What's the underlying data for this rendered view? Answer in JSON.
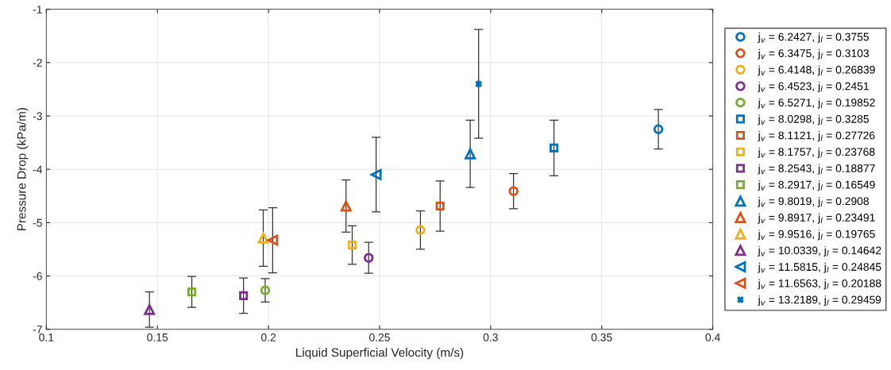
{
  "chart_data": {
    "type": "scatter",
    "xlabel": "Liquid Superficial Velocity (m/s)",
    "ylabel": "Pressure Drop (kPa/m)",
    "xlim": [
      0.1,
      0.4
    ],
    "ylim": [
      -7,
      -1
    ],
    "xticks": [
      0.1,
      0.15,
      0.2,
      0.25,
      0.3,
      0.35,
      0.4
    ],
    "yticks": [
      -7,
      -6,
      -5,
      -4,
      -3,
      -2,
      -1
    ],
    "grid": true,
    "legend": "right",
    "series": [
      {
        "name": "j$_{v}$ = 6.2427, j$_{l}$ = 0.3755",
        "color": "#0072bd",
        "marker": "circle",
        "x": [
          0.3755
        ],
        "values": [
          -3.25
        ],
        "errors": [
          0.37
        ]
      },
      {
        "name": "j$_{v}$ = 6.3475, j$_{l}$ = 0.3103",
        "color": "#d95319",
        "marker": "circle",
        "x": [
          0.3103
        ],
        "values": [
          -4.41
        ],
        "errors": [
          0.33
        ]
      },
      {
        "name": "j$_{v}$ = 6.4148, j$_{l}$ = 0.26839",
        "color": "#edb120",
        "marker": "circle",
        "x": [
          0.26839
        ],
        "values": [
          -5.14
        ],
        "errors": [
          0.36
        ]
      },
      {
        "name": "j$_{v}$ = 6.4523, j$_{l}$ = 0.2451",
        "color": "#7e2f8e",
        "marker": "circle",
        "x": [
          0.2451
        ],
        "values": [
          -5.66
        ],
        "errors": [
          0.29
        ]
      },
      {
        "name": "j$_{v}$ = 6.5271, j$_{l}$ = 0.19852",
        "color": "#77ac30",
        "marker": "circle",
        "x": [
          0.19852
        ],
        "values": [
          -6.27
        ],
        "errors": [
          0.22
        ]
      },
      {
        "name": "j$_{v}$ = 8.0298, j$_{l}$ = 0.3285",
        "color": "#0072bd",
        "marker": "square",
        "x": [
          0.3285
        ],
        "values": [
          -3.6
        ],
        "errors": [
          0.52
        ]
      },
      {
        "name": "j$_{v}$ = 8.1121, j$_{l}$ = 0.27726",
        "color": "#d95319",
        "marker": "square",
        "x": [
          0.27726
        ],
        "values": [
          -4.69
        ],
        "errors": [
          0.47
        ]
      },
      {
        "name": "j$_{v}$ = 8.1757, j$_{l}$ = 0.23768",
        "color": "#edb120",
        "marker": "square",
        "x": [
          0.23768
        ],
        "values": [
          -5.42
        ],
        "errors": [
          0.36
        ]
      },
      {
        "name": "j$_{v}$ = 8.2543, j$_{l}$ = 0.18877",
        "color": "#7e2f8e",
        "marker": "square",
        "x": [
          0.18877
        ],
        "values": [
          -6.37
        ],
        "errors": [
          0.33
        ]
      },
      {
        "name": "j$_{v}$ = 8.2917, j$_{l}$ = 0.16549",
        "color": "#77ac30",
        "marker": "square",
        "x": [
          0.16549
        ],
        "values": [
          -6.3
        ],
        "errors": [
          0.29
        ]
      },
      {
        "name": "j$_{v}$ = 9.8019, j$_{l}$ = 0.2908",
        "color": "#0072bd",
        "marker": "triangle",
        "x": [
          0.2908
        ],
        "values": [
          -3.71
        ],
        "errors": [
          0.63
        ]
      },
      {
        "name": "j$_{v}$ = 9.8917, j$_{l}$ = 0.23491",
        "color": "#d95319",
        "marker": "triangle",
        "x": [
          0.23491
        ],
        "values": [
          -4.69
        ],
        "errors": [
          0.49
        ]
      },
      {
        "name": "j$_{v}$ = 9.9516, j$_{l}$ = 0.19765",
        "color": "#edb120",
        "marker": "triangle",
        "x": [
          0.19765
        ],
        "values": [
          -5.29
        ],
        "errors": [
          0.53
        ]
      },
      {
        "name": "j$_{v}$ = 10.0339, j$_{l}$ = 0.14642",
        "color": "#7e2f8e",
        "marker": "triangle",
        "x": [
          0.14642
        ],
        "values": [
          -6.63
        ],
        "errors": [
          0.33
        ]
      },
      {
        "name": "j$_{v}$ = 11.5815, j$_{l}$ = 0.24845",
        "color": "#0072bd",
        "marker": "triangle-left",
        "x": [
          0.24845
        ],
        "values": [
          -4.1
        ],
        "errors": [
          0.7
        ]
      },
      {
        "name": "j$_{v}$ = 11.6563, j$_{l}$ = 0.20188",
        "color": "#d95319",
        "marker": "triangle-left",
        "x": [
          0.20188
        ],
        "values": [
          -5.33
        ],
        "errors": [
          [
            -5.94,
            -4.72
          ]
        ]
      },
      {
        "name": "j$_{v}$ = 13.2189, j$_{l}$ = 0.29459",
        "color": "#0072bd",
        "marker": "cross",
        "x": [
          0.29459
        ],
        "values": [
          -2.4
        ],
        "errors": [
          1.02
        ]
      }
    ]
  }
}
